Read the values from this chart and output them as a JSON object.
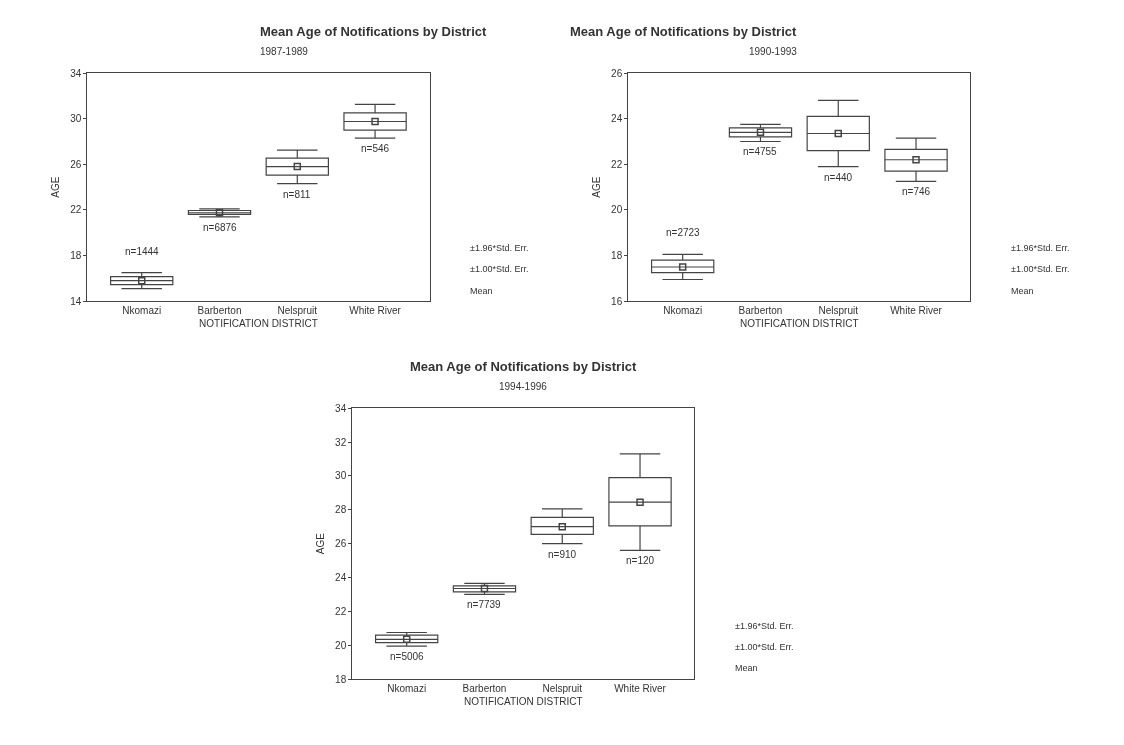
{
  "chart_data": [
    {
      "type": "box",
      "title": "Mean Age of Notifications by District",
      "subtitle": "1987-1989",
      "xlabel": "NOTIFICATION DISTRICT",
      "ylabel": "AGE",
      "categories": [
        "Nkomazi",
        "Barberton",
        "Nelspruit",
        "White River"
      ],
      "boxes": [
        {
          "low": 15.1,
          "q1": 15.45,
          "median": 15.8,
          "q3": 16.15,
          "high": 16.5,
          "mean": 15.8
        },
        {
          "low": 21.4,
          "q1": 21.6,
          "median": 21.75,
          "q3": 21.95,
          "high": 22.1,
          "mean": 21.75
        },
        {
          "low": 24.3,
          "q1": 25.05,
          "median": 25.8,
          "q3": 26.55,
          "high": 27.25,
          "mean": 25.8
        },
        {
          "low": 28.3,
          "q1": 29.0,
          "median": 29.75,
          "q3": 30.5,
          "high": 31.25,
          "mean": 29.75
        }
      ],
      "ylim": [
        14,
        34
      ],
      "yticks": [
        14,
        18,
        22,
        26,
        30,
        34
      ],
      "annotations": [
        "n=1444",
        "n=6876",
        "n=811",
        "n=546",
        "±1.96*Std. Err.",
        "±1.00*Std. Err.",
        "Mean"
      ]
    },
    {
      "type": "box",
      "title": "Mean Age of Notifications by District",
      "subtitle": "1990-1993",
      "xlabel": "NOTIFICATION DISTRICT",
      "ylabel": "AGE",
      "categories": [
        "Nkomazi",
        "Barberton",
        "Nelspruit",
        "White River"
      ],
      "boxes": [
        {
          "low": 16.95,
          "q1": 17.25,
          "median": 17.5,
          "q3": 17.8,
          "high": 18.05,
          "mean": 17.5
        },
        {
          "low": 23.0,
          "q1": 23.2,
          "median": 23.4,
          "q3": 23.6,
          "high": 23.75,
          "mean": 23.4
        },
        {
          "low": 21.9,
          "q1": 22.6,
          "median": 23.35,
          "q3": 24.1,
          "high": 24.8,
          "mean": 23.35
        },
        {
          "low": 21.25,
          "q1": 21.7,
          "median": 22.2,
          "q3": 22.65,
          "high": 23.15,
          "mean": 22.2
        }
      ],
      "ylim": [
        16,
        26
      ],
      "yticks": [
        16,
        18,
        20,
        22,
        24,
        26
      ],
      "annotations": [
        "n=2723",
        "n=4755",
        "n=440",
        "n=746",
        "±1.96*Std. Err.",
        "±1.00*Std. Err.",
        "Mean"
      ]
    },
    {
      "type": "box",
      "title": "Mean Age of Notifications by District",
      "subtitle": "1994-1996",
      "xlabel": "NOTIFICATION DISTRICT",
      "ylabel": "AGE",
      "categories": [
        "Nkomazi",
        "Barberton",
        "Nelspruit",
        "White River"
      ],
      "boxes": [
        {
          "low": 19.95,
          "q1": 20.15,
          "median": 20.35,
          "q3": 20.6,
          "high": 20.75,
          "mean": 20.35
        },
        {
          "low": 23.0,
          "q1": 23.15,
          "median": 23.35,
          "q3": 23.5,
          "high": 23.65,
          "mean": 23.35
        },
        {
          "low": 26.0,
          "q1": 26.55,
          "median": 27.0,
          "q3": 27.55,
          "high": 28.05,
          "mean": 27.0
        },
        {
          "low": 25.6,
          "q1": 27.05,
          "median": 28.45,
          "q3": 29.9,
          "high": 31.3,
          "mean": 28.45
        }
      ],
      "ylim": [
        18,
        34
      ],
      "yticks": [
        18,
        20,
        22,
        24,
        26,
        28,
        30,
        32,
        34
      ],
      "annotations": [
        "n=5006",
        "n=7739",
        "n=910",
        "n=120",
        "±1.96*Std. Err.",
        "±1.00*Std. Err.",
        "Mean"
      ]
    }
  ]
}
